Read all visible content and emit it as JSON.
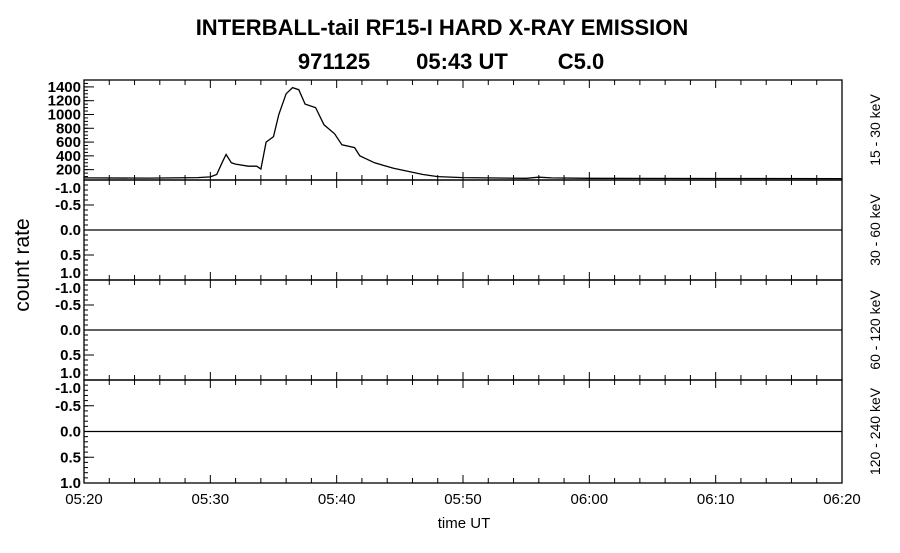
{
  "chart_data": {
    "type": "line",
    "title": "INTERBALL-tail  RF15-I  HARD  X-RAY  EMISSION",
    "subtitle": [
      "971125",
      "05:43 UT",
      "C5.0"
    ],
    "xlabel": "time UT",
    "ylabel": "count rate",
    "xlim": [
      "05:20",
      "06:20"
    ],
    "xticks": [
      "05:20",
      "05:30",
      "05:40",
      "05:50",
      "06:00",
      "06:10",
      "06:20"
    ],
    "grid": false,
    "panels": [
      {
        "label": "15 - 30 keV",
        "ylim": [
          50,
          1500
        ],
        "yticks": [
          "200",
          "400",
          "600",
          "800",
          "1000",
          "1200",
          "1400"
        ],
        "series": [
          {
            "x": [
              "05:20:00",
              "05:25:00",
              "05:29:00",
              "05:30:00",
              "05:30:30",
              "05:31:00",
              "05:31:15",
              "05:31:40",
              "05:32:00",
              "05:33:00",
              "05:33:40",
              "05:34:00",
              "05:34:25",
              "05:35:00",
              "05:35:25",
              "05:36:00",
              "05:36:30",
              "05:37:00",
              "05:37:30",
              "05:38:20",
              "05:39:00",
              "05:39:50",
              "05:40:25",
              "05:41:25",
              "05:41:50",
              "05:43:00",
              "05:44:30",
              "05:46:50",
              "05:48:00",
              "05:50:00",
              "05:55:00",
              "05:56:00",
              "05:57:00",
              "06:00:00",
              "06:10:00",
              "06:20:00"
            ],
            "y": [
              80,
              78,
              85,
              95,
              130,
              330,
              420,
              300,
              280,
              250,
              250,
              210,
              600,
              680,
              1000,
              1300,
              1390,
              1360,
              1150,
              1100,
              850,
              720,
              560,
              520,
              400,
              300,
              220,
              130,
              100,
              85,
              75,
              90,
              80,
              75,
              72,
              70
            ]
          }
        ]
      },
      {
        "label": "30 - 60 keV",
        "ylim": [
          -1.0,
          1.0
        ],
        "yticks": [
          "-1.0",
          "-0.5",
          "0.0",
          "0.5",
          "1.0"
        ],
        "series": [
          {
            "x": [
              "05:20:00",
              "06:20:00"
            ],
            "y": [
              0,
              0
            ]
          }
        ]
      },
      {
        "label": "60 - 120 keV",
        "ylim": [
          -1.0,
          1.0
        ],
        "yticks": [
          "-1.0",
          "-0.5",
          "0.0",
          "0.5",
          "1.0"
        ],
        "series": [
          {
            "x": [
              "05:20:00",
              "06:20:00"
            ],
            "y": [
              0,
              0
            ]
          }
        ]
      },
      {
        "label": "120 - 240 keV",
        "ylim": [
          -1.0,
          1.0
        ],
        "yticks": [
          "-1.0",
          "-0.5",
          "0.0",
          "0.5",
          "1.0"
        ],
        "series": [
          {
            "x": [
              "05:20:00",
              "06:20:00"
            ],
            "y": [
              0,
              0
            ]
          }
        ]
      }
    ]
  }
}
